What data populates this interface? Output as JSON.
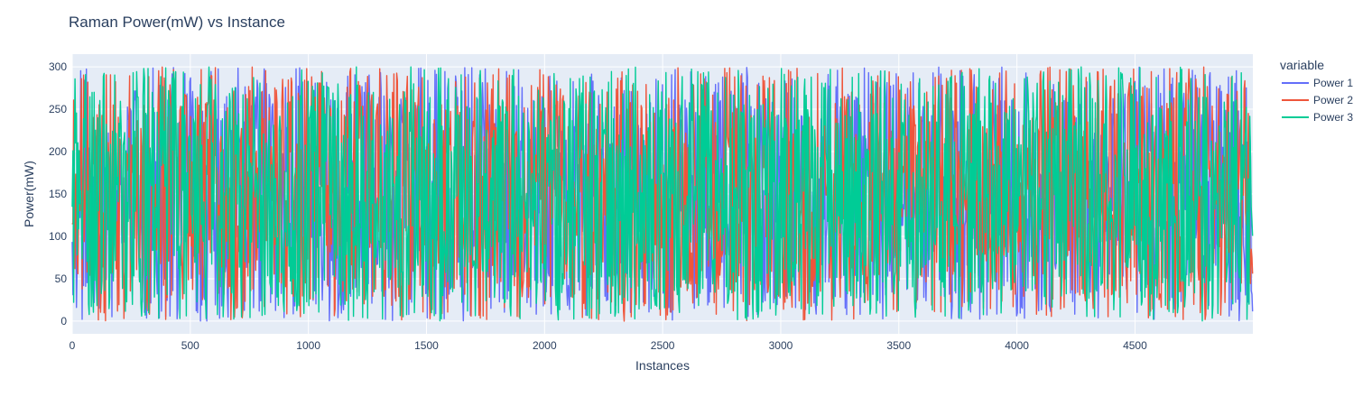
{
  "chart_data": {
    "type": "line",
    "title": "Raman Power(mW) vs Instance",
    "xlabel": "Instances",
    "ylabel": "Power(mW)",
    "xlim": [
      0,
      4999
    ],
    "ylim": [
      -15,
      315
    ],
    "x_ticks": [
      0,
      500,
      1000,
      1500,
      2000,
      2500,
      3000,
      3500,
      4000,
      4500
    ],
    "y_ticks": [
      0,
      50,
      100,
      150,
      200,
      250,
      300
    ],
    "grid": true,
    "legend": {
      "title": "variable",
      "placement": "right"
    },
    "plot_background": "#e5ecf6",
    "point_count": 5000,
    "value_range": [
      0,
      300
    ],
    "series": [
      {
        "name": "Power 1",
        "color": "#636efa"
      },
      {
        "name": "Power 2",
        "color": "#ef553b"
      },
      {
        "name": "Power 3",
        "color": "#00cc96"
      }
    ]
  }
}
